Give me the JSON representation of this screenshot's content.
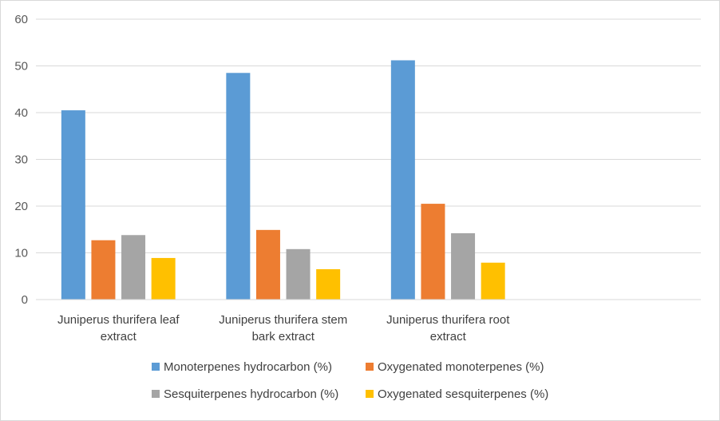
{
  "chart_data": {
    "type": "bar",
    "categories": [
      [
        "Juniperus thurifera leaf",
        "extract"
      ],
      [
        "Juniperus thurifera stem",
        "bark extract"
      ],
      [
        "Juniperus thurifera root",
        "extract"
      ]
    ],
    "series": [
      {
        "name": "Monoterpenes hydrocarbon (%)",
        "color": "#5b9bd5",
        "values": [
          40.5,
          48.5,
          51.2
        ]
      },
      {
        "name": "Oxygenated monoterpenes (%)",
        "color": "#ed7d31",
        "values": [
          12.7,
          14.9,
          20.5
        ]
      },
      {
        "name": "Sesquiterpenes hydrocarbon (%)",
        "color": "#a5a5a5",
        "values": [
          13.8,
          10.8,
          14.2
        ]
      },
      {
        "name": "Oxygenated sesquiterpenes (%)",
        "color": "#ffc000",
        "values": [
          8.9,
          6.5,
          7.9
        ]
      }
    ],
    "ylim": [
      0,
      60
    ],
    "yticks": [
      0,
      10,
      20,
      30,
      40,
      50,
      60
    ],
    "grid": true,
    "legend_position": "bottom"
  }
}
